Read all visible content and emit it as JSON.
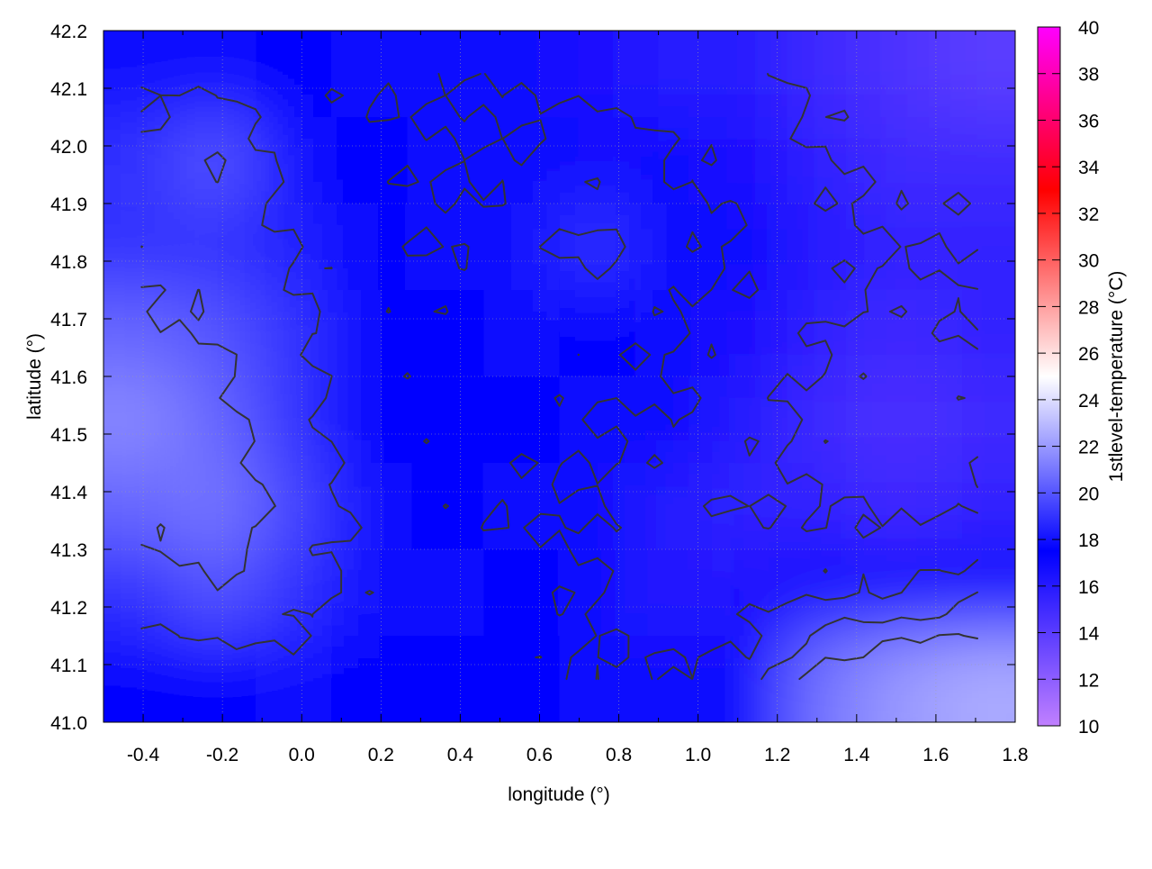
{
  "chart_data": {
    "type": "heatmap",
    "xlabel": "longitude (°)",
    "ylabel": "latitude (°)",
    "colorbar_label": "1stlevel-temperature (°C)",
    "xlim": [
      -0.5,
      1.8
    ],
    "ylim": [
      41.0,
      42.2
    ],
    "clim": [
      10,
      40
    ],
    "xticks": [
      "-0.4",
      "-0.2",
      "0.0",
      "0.2",
      "0.4",
      "0.6",
      "0.8",
      "1.0",
      "1.2",
      "1.4",
      "1.6",
      "1.8"
    ],
    "yticks": [
      "41.0",
      "41.1",
      "41.2",
      "41.3",
      "41.4",
      "41.5",
      "41.6",
      "41.7",
      "41.8",
      "41.9",
      "42.0",
      "42.1",
      "42.2"
    ],
    "cticks": [
      "10",
      "12",
      "14",
      "16",
      "18",
      "20",
      "22",
      "24",
      "26",
      "28",
      "30",
      "32",
      "34",
      "36",
      "38",
      "40"
    ],
    "grid": true,
    "contours": true,
    "colormap": [
      {
        "value": 10,
        "color": "#c080ff"
      },
      {
        "value": 17.5,
        "color": "#0000ff"
      },
      {
        "value": 25,
        "color": "#ffffff"
      },
      {
        "value": 33,
        "color": "#ff0000"
      },
      {
        "value": 40,
        "color": "#ff00ff"
      }
    ],
    "grid_lon": [
      -0.404,
      -0.213,
      -0.021,
      0.171,
      0.363,
      0.554,
      0.746,
      0.938,
      1.129,
      1.321,
      1.513,
      1.704
    ],
    "grid_lat": [
      42.125,
      41.975,
      41.825,
      41.675,
      41.525,
      41.375,
      41.225,
      41.075
    ],
    "values": [
      [
        18,
        18,
        17.5,
        17,
        17,
        17,
        16.5,
        16,
        16,
        15,
        14.5,
        14
      ],
      [
        19,
        20,
        18,
        17.5,
        17,
        17,
        18,
        17,
        16.5,
        15.5,
        15,
        15
      ],
      [
        19,
        19,
        18.5,
        17.5,
        17,
        18,
        19,
        17.5,
        17,
        16,
        15.5,
        15.5
      ],
      [
        20.5,
        20,
        19,
        17.5,
        17.5,
        18,
        17.5,
        17,
        16.5,
        15.5,
        15,
        15.5
      ],
      [
        21.5,
        20.5,
        19,
        17.5,
        17.5,
        17.5,
        17,
        17,
        16,
        15,
        14.5,
        15
      ],
      [
        20.5,
        21,
        19.5,
        18,
        17.5,
        17,
        17,
        16,
        15.5,
        15.5,
        15,
        15.5
      ],
      [
        19,
        20,
        19,
        18,
        18,
        17.5,
        17,
        16,
        16.5,
        17,
        17,
        18
      ],
      [
        17.5,
        17.5,
        18,
        17.5,
        17.5,
        17.5,
        17,
        17,
        17.5,
        21,
        22,
        22.5
      ]
    ]
  }
}
